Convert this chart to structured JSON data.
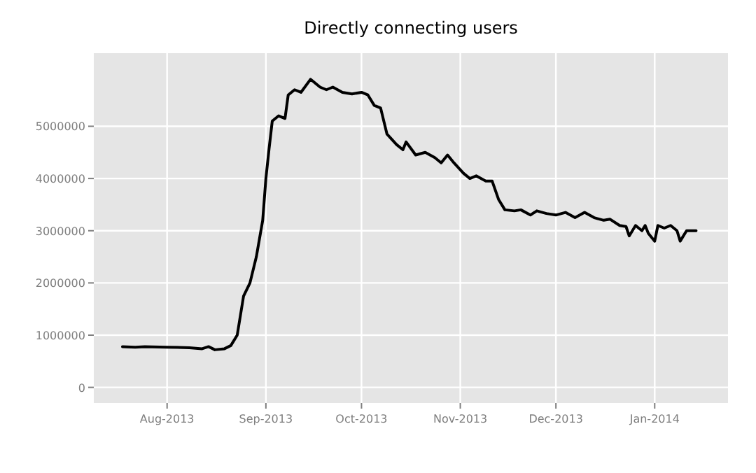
{
  "chart_data": {
    "type": "line",
    "title": "Directly connecting users",
    "x": [
      "2013-07-18",
      "2013-07-22",
      "2013-07-25",
      "2013-08-01",
      "2013-08-08",
      "2013-08-12",
      "2013-08-14",
      "2013-08-16",
      "2013-08-19",
      "2013-08-21",
      "2013-08-23",
      "2013-08-25",
      "2013-08-27",
      "2013-08-29",
      "2013-08-31",
      "2013-09-01",
      "2013-09-02",
      "2013-09-03",
      "2013-09-05",
      "2013-09-07",
      "2013-09-08",
      "2013-09-10",
      "2013-09-12",
      "2013-09-15",
      "2013-09-18",
      "2013-09-20",
      "2013-09-22",
      "2013-09-25",
      "2013-09-28",
      "2013-10-01",
      "2013-10-03",
      "2013-10-05",
      "2013-10-07",
      "2013-10-09",
      "2013-10-12",
      "2013-10-14",
      "2013-10-15",
      "2013-10-18",
      "2013-10-21",
      "2013-10-24",
      "2013-10-26",
      "2013-10-28",
      "2013-10-30",
      "2013-11-02",
      "2013-11-04",
      "2013-11-06",
      "2013-11-09",
      "2013-11-11",
      "2013-11-13",
      "2013-11-15",
      "2013-11-18",
      "2013-11-20",
      "2013-11-23",
      "2013-11-25",
      "2013-11-28",
      "2013-12-01",
      "2013-12-04",
      "2013-12-07",
      "2013-12-10",
      "2013-12-13",
      "2013-12-16",
      "2013-12-18",
      "2013-12-21",
      "2013-12-23",
      "2013-12-24",
      "2013-12-26",
      "2013-12-28",
      "2013-12-29",
      "2013-12-30",
      "2014-01-01",
      "2014-01-02",
      "2014-01-04",
      "2014-01-06",
      "2014-01-08",
      "2014-01-09",
      "2014-01-11",
      "2014-01-14"
    ],
    "series": [
      {
        "color": "#000000",
        "values": [
          780000,
          770000,
          780000,
          770000,
          760000,
          740000,
          780000,
          720000,
          740000,
          800000,
          1000000,
          1750000,
          2000000,
          2500000,
          3200000,
          4000000,
          4570000,
          5100000,
          5200000,
          5150000,
          5600000,
          5700000,
          5650000,
          5900000,
          5750000,
          5700000,
          5750000,
          5650000,
          5620000,
          5650000,
          5600000,
          5400000,
          5350000,
          4850000,
          4650000,
          4550000,
          4700000,
          4450000,
          4500000,
          4400000,
          4300000,
          4450000,
          4300000,
          4100000,
          4000000,
          4050000,
          3950000,
          3950000,
          3600000,
          3400000,
          3380000,
          3400000,
          3300000,
          3380000,
          3330000,
          3300000,
          3350000,
          3250000,
          3350000,
          3250000,
          3200000,
          3220000,
          3100000,
          3080000,
          2900000,
          3100000,
          3000000,
          3100000,
          2950000,
          2800000,
          3100000,
          3050000,
          3100000,
          3000000,
          2800000,
          3000000,
          3000000
        ]
      }
    ],
    "xlim": [
      "2013-07-09",
      "2014-01-24"
    ],
    "xticks": [
      {
        "value": "2013-08-01",
        "label": "Aug-2013"
      },
      {
        "value": "2013-09-01",
        "label": "Sep-2013"
      },
      {
        "value": "2013-10-01",
        "label": "Oct-2013"
      },
      {
        "value": "2013-11-01",
        "label": "Nov-2013"
      },
      {
        "value": "2013-12-01",
        "label": "Dec-2013"
      },
      {
        "value": "2014-01-01",
        "label": "Jan-2014"
      }
    ],
    "ylim": [
      -300000,
      6400000
    ],
    "yticks": [
      0,
      1000000,
      2000000,
      3000000,
      4000000,
      5000000
    ],
    "grid": true,
    "marker": "none",
    "line_style": "solid"
  }
}
